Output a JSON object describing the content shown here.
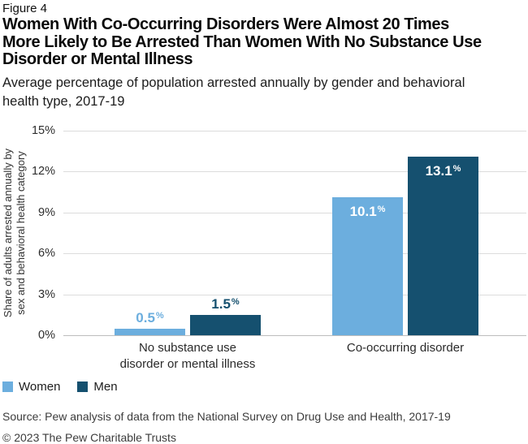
{
  "figure_label": "Figure 4",
  "title": "Women With Co-Occurring Disorders Were Almost 20 Times\nMore Likely to Be Arrested Than Women With No Substance Use\nDisorder or Mental Illness",
  "subtitle": "Average percentage of population arrested annually by gender and behavioral\nhealth type, 2017-19",
  "source": "Source: Pew analysis of data from the National Survey on Drug Use and Health, 2017-19",
  "copyright": "© 2023 The Pew Charitable Trusts",
  "chart_data": {
    "type": "bar",
    "title": "Women With Co-Occurring Disorders Were Almost 20 Times More Likely to Be Arrested Than Women With No Substance Use Disorder or Mental Illness",
    "subtitle": "Average percentage of population arrested annually by gender and behavioral health type, 2017-19",
    "categories": [
      "No substance use\ndisorder or mental illness",
      "Co-occurring disorder"
    ],
    "series": [
      {
        "name": "Women",
        "values": [
          0.5,
          10.1
        ],
        "color": "#6CAEDE"
      },
      {
        "name": "Men",
        "values": [
          1.5,
          13.1
        ],
        "color": "#15506F"
      }
    ],
    "ylabel": "Share of adults arrested annually by\nsex and behavioral health category",
    "yticks": [
      0,
      3,
      6,
      9,
      12,
      15
    ],
    "ytick_suffix": "%",
    "ylim": [
      0,
      15
    ],
    "grid": true,
    "value_suffix": "%",
    "inside_label_color": "#ffffff",
    "legend_position": "bottom-left"
  }
}
